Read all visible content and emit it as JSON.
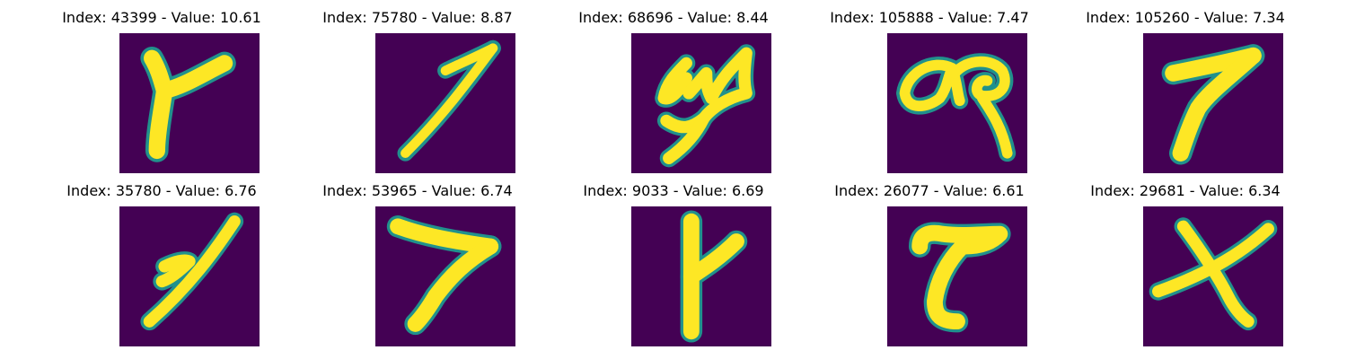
{
  "figure": {
    "colormap": "viridis",
    "colors": {
      "background": "#440154",
      "stroke": "#fde725",
      "edge": "#21918c",
      "edge_mid": "#5ec962"
    },
    "panels": [
      {
        "title": "Index: 43399 - Value: 10.61",
        "glyph": "glyph-y"
      },
      {
        "title": "Index: 75780 - Value: 8.87",
        "glyph": "glyph-thin-seven"
      },
      {
        "title": "Index: 68696 - Value: 8.44",
        "glyph": "glyph-scribble"
      },
      {
        "title": "Index: 105888 - Value: 7.47",
        "glyph": "glyph-loops"
      },
      {
        "title": "Index: 105260 - Value: 7.34",
        "glyph": "glyph-seven"
      },
      {
        "title": "Index: 35780 - Value: 6.76",
        "glyph": "glyph-hooked-one"
      },
      {
        "title": "Index: 53965 - Value: 6.74",
        "glyph": "glyph-wide-seven"
      },
      {
        "title": "Index: 9033 - Value: 6.69",
        "glyph": "glyph-y-upright"
      },
      {
        "title": "Index: 26077 - Value: 6.61",
        "glyph": "glyph-curved-seven"
      },
      {
        "title": "Index: 29681 - Value: 6.34",
        "glyph": "glyph-x"
      }
    ]
  }
}
